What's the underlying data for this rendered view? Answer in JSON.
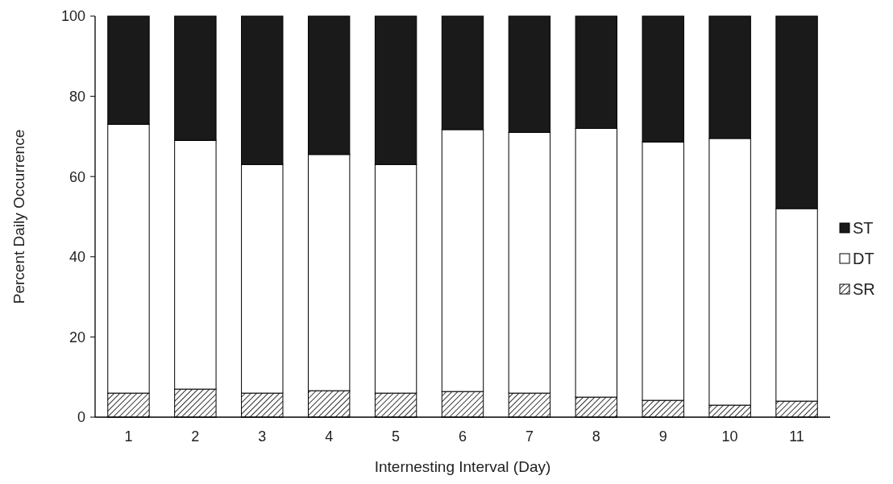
{
  "chart_data": {
    "type": "bar",
    "stacked": true,
    "xlabel": "Internesting Interval (Day)",
    "ylabel": "Percent Daily Occurrence",
    "categories": [
      "1",
      "2",
      "3",
      "4",
      "5",
      "6",
      "7",
      "8",
      "9",
      "10",
      "11"
    ],
    "ylim": [
      0,
      100
    ],
    "yticks": [
      0,
      20,
      40,
      60,
      80,
      100
    ],
    "legend": "right",
    "series": [
      {
        "name": "SR",
        "color": "#000000",
        "values": [
          6,
          7,
          6,
          6.6,
          6,
          6.4,
          6,
          5,
          4.2,
          3,
          4
        ]
      },
      {
        "name": "DT",
        "color": "#ffffff",
        "values": [
          67,
          62,
          57,
          58.9,
          57,
          65.3,
          65,
          67,
          64.4,
          66.5,
          48
        ]
      },
      {
        "name": "ST",
        "color": "#1a1a1a",
        "values": [
          27,
          31,
          37,
          34.5,
          37,
          28.3,
          29,
          28,
          31.4,
          30.5,
          48
        ]
      }
    ]
  }
}
